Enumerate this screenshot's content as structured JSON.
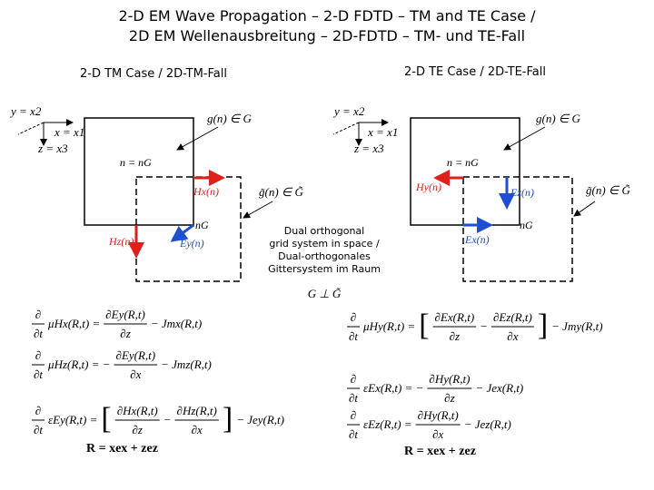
{
  "title": {
    "line1": "2-D EM Wave Propagation – 2-D FDTD – TM and TE Case /",
    "line2": "2D EM Wellenausbreitung – 2D-FDTD – TM- und TE-Fall"
  },
  "tm_case": {
    "heading": "2-D TM Case / 2D-TM-Fall",
    "diagram": {
      "axes": [
        "y = x2",
        "x = x1",
        "z = x3"
      ],
      "primal_label": "g(n) ∈ G",
      "dual_label": "g̃(n) ∈ G̃",
      "node_primal": "n = nG",
      "node_dual": "nG",
      "fields": [
        "Hx(n)",
        "Hz(n)",
        "Ey(n)"
      ]
    },
    "equations": [
      [
        {
          "num": "∂",
          "den": "∂t"
        },
        "μHx(R,t) =",
        {
          "num": "∂Ey(R,t)",
          "den": "∂z"
        },
        "− Jmx(R,t)"
      ],
      [
        {
          "num": "∂",
          "den": "∂t"
        },
        "μHz(R,t) = −",
        {
          "num": "∂Ey(R,t)",
          "den": "∂x"
        },
        "− Jmz(R,t)"
      ],
      [
        {
          "num": "∂",
          "den": "∂t"
        },
        "εEy(R,t) =",
        "[",
        {
          "num": "∂Hx(R,t)",
          "den": "∂z"
        },
        "−",
        {
          "num": "∂Hz(R,t)",
          "den": "∂x"
        },
        "]",
        "− Jey(R,t)"
      ]
    ],
    "position": "R = xex + zez"
  },
  "te_case": {
    "heading": "2-D TE Case / 2D-TE-Fall",
    "diagram": {
      "axes": [
        "y = x2",
        "x = x1",
        "z = x3"
      ],
      "primal_label": "g(n) ∈ G",
      "dual_label": "g̃(n) ∈ G̃",
      "node_primal": "n = nG",
      "node_dual": "nG",
      "fields": [
        "Hy(n)",
        "Ez(n)",
        "Ex(n)"
      ]
    },
    "equations": [
      [
        {
          "num": "∂",
          "den": "∂t"
        },
        "μHy(R,t) =",
        "[",
        {
          "num": "∂Ex(R,t)",
          "den": "∂z"
        },
        "−",
        {
          "num": "∂Ez(R,t)",
          "den": "∂x"
        },
        "]",
        "− Jmy(R,t)"
      ],
      [
        {
          "num": "∂",
          "den": "∂t"
        },
        "εEx(R,t) = −",
        {
          "num": "∂Hy(R,t)",
          "den": "∂z"
        },
        "− Jex(R,t)"
      ],
      [
        {
          "num": "∂",
          "den": "∂t"
        },
        "εEz(R,t) =",
        {
          "num": "∂Hy(R,t)",
          "den": "∂x"
        },
        "− Jez(R,t)"
      ]
    ],
    "position": "R = xex + zez"
  },
  "center_note": {
    "lines": [
      "Dual orthogonal",
      "grid system in space /",
      "Dual-orthogonales",
      "Gittersystem im Raum"
    ],
    "relation": "G ⊥ G̃"
  }
}
